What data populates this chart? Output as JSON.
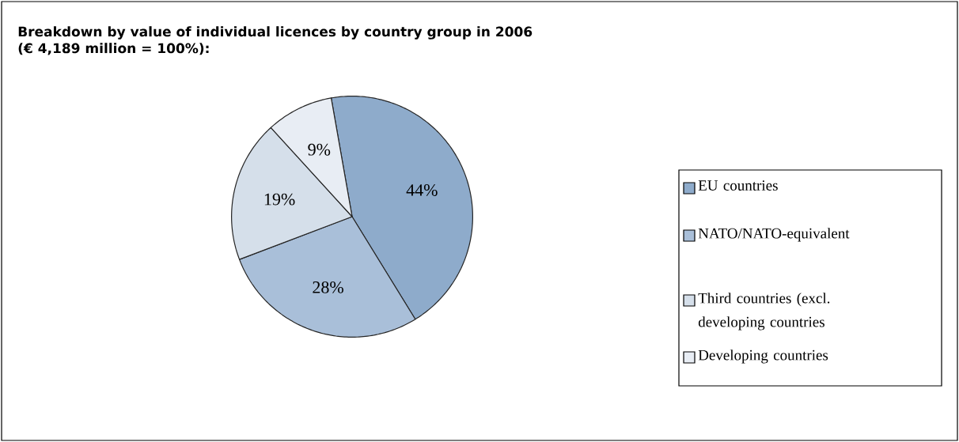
{
  "chart_data": {
    "type": "pie",
    "title": "Breakdown by value of individual licences by country group in 2006",
    "subtitle": "(€ 4,189 million = 100%):",
    "categories": [
      "EU countries",
      "NATO/NATO-equivalent",
      "Third countries (excl. developing countries",
      "Developing countries"
    ],
    "values": [
      44,
      28,
      19,
      9
    ],
    "value_labels": [
      "44%",
      "28%",
      "19%",
      "9%"
    ],
    "colors": [
      "#8eabcb",
      "#a9bfd9",
      "#d5dfea",
      "#e8edf4"
    ],
    "legend": "right"
  }
}
